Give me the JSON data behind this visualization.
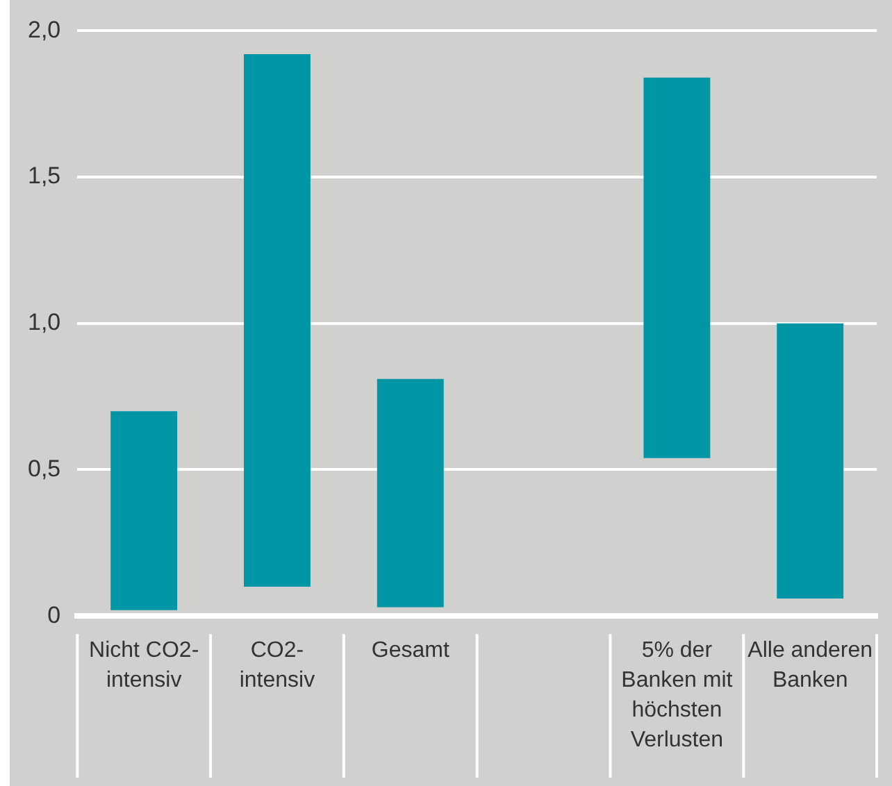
{
  "chart_data": {
    "type": "bar",
    "categories": [
      "Nicht CO2-intensiv",
      "CO2-intensiv",
      "Gesamt",
      null,
      "5% der Banken mit höchsten Verlusten",
      "Alle anderen Banken"
    ],
    "base": [
      0.02,
      0.1,
      0.03,
      null,
      0.54,
      0.06
    ],
    "values": [
      0.68,
      1.82,
      0.78,
      null,
      1.3,
      0.94
    ],
    "color": "#0096a5",
    "ylim": [
      0,
      2
    ],
    "yticks": [
      0,
      {
        "value": 0.5,
        "label": "0,5"
      },
      {
        "value": 1,
        "label": "1,0"
      },
      {
        "value": 1.5,
        "label": "1,5"
      },
      {
        "value": 2,
        "label": "2,0"
      }
    ],
    "grid": "y",
    "legend": false
  }
}
